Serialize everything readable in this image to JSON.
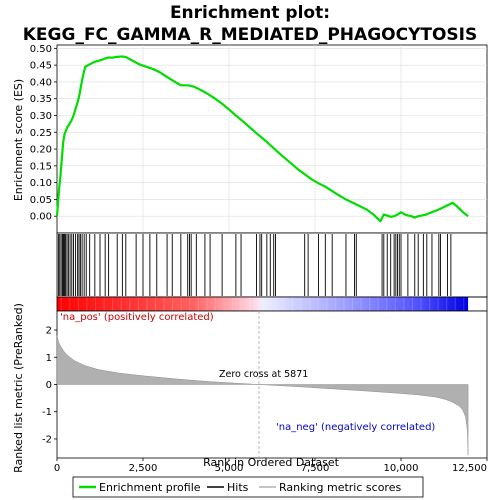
{
  "chart_data": {
    "type": "line",
    "title_line1": "Enrichment plot:",
    "title_line2": "KEGG_FC_GAMMA_R_MEDIATED_PHAGOCYTOSIS",
    "colors": {
      "enrichment_line": "#00dd00",
      "hits": "#000000",
      "metric_fill": "#b0b0b0",
      "heat_red": "#ff0000",
      "heat_blue": "#0000ff",
      "zero_line": "#aaaaaa"
    },
    "top_panel": {
      "ylabel": "Enrichment score (ES)",
      "ylim": [
        -0.05,
        0.51
      ],
      "yticks": [
        0.0,
        0.05,
        0.1,
        0.15,
        0.2,
        0.25,
        0.3,
        0.35,
        0.4,
        0.45,
        0.5
      ],
      "ytick_labels": [
        "0.00",
        "0.05",
        "0.10",
        "0.15",
        "0.20",
        "0.25",
        "0.30",
        "0.35",
        "0.40",
        "0.45",
        "0.50"
      ],
      "grid": true,
      "series": [
        {
          "name": "Enrichment profile",
          "x": [
            0,
            30,
            60,
            100,
            140,
            180,
            220,
            260,
            300,
            360,
            420,
            480,
            540,
            600,
            650,
            700,
            760,
            820,
            900,
            1000,
            1100,
            1200,
            1300,
            1400,
            1500,
            1600,
            1700,
            1800,
            1900,
            2000,
            2200,
            2400,
            2600,
            2800,
            3000,
            3200,
            3400,
            3600,
            3800,
            3900,
            4000,
            4200,
            4400,
            4600,
            4800,
            5000,
            5200,
            5400,
            5600,
            5800,
            6000,
            6200,
            6400,
            6600,
            6800,
            7000,
            7200,
            7400,
            7600,
            7800,
            8000,
            8200,
            8400,
            8600,
            8800,
            9000,
            9200,
            9400,
            9450,
            9500,
            9600,
            9700,
            9800,
            9900,
            10000,
            10100,
            10200,
            10300,
            10400,
            10500,
            10600,
            10700,
            10800,
            10900,
            11000,
            11100,
            11200,
            11300,
            11400,
            11500,
            11600,
            11700,
            11800,
            11900,
            11950
          ],
          "y": [
            0.0,
            0.04,
            0.08,
            0.12,
            0.17,
            0.22,
            0.245,
            0.255,
            0.265,
            0.275,
            0.285,
            0.3,
            0.32,
            0.34,
            0.36,
            0.39,
            0.42,
            0.445,
            0.45,
            0.455,
            0.46,
            0.463,
            0.466,
            0.47,
            0.473,
            0.472,
            0.474,
            0.475,
            0.476,
            0.474,
            0.463,
            0.452,
            0.445,
            0.438,
            0.428,
            0.415,
            0.402,
            0.39,
            0.39,
            0.388,
            0.385,
            0.375,
            0.363,
            0.35,
            0.335,
            0.318,
            0.3,
            0.283,
            0.265,
            0.247,
            0.23,
            0.212,
            0.193,
            0.175,
            0.158,
            0.14,
            0.125,
            0.11,
            0.098,
            0.088,
            0.075,
            0.062,
            0.05,
            0.04,
            0.03,
            0.02,
            0.005,
            -0.015,
            -0.005,
            0.005,
            0.002,
            -0.002,
            0.0,
            0.005,
            0.012,
            0.006,
            0.002,
            0.0,
            -0.004,
            0.0,
            0.002,
            0.004,
            0.008,
            0.012,
            0.016,
            0.02,
            0.025,
            0.03,
            0.035,
            0.04,
            0.032,
            0.022,
            0.012,
            0.004,
            0.0
          ]
        }
      ]
    },
    "hits": [
      40,
      80,
      120,
      160,
      190,
      220,
      250,
      290,
      330,
      380,
      430,
      480,
      540,
      600,
      640,
      680,
      730,
      790,
      850,
      950,
      1100,
      1250,
      1400,
      1500,
      1750,
      1900,
      2000,
      2300,
      2500,
      2700,
      2900,
      3200,
      3350,
      3600,
      3800,
      3850,
      3900,
      4050,
      4300,
      4450,
      4800,
      5200,
      5350,
      5800,
      5900,
      5950,
      6100,
      6200,
      6300,
      6350,
      7200,
      7300,
      7600,
      7800,
      8000,
      8400,
      8650,
      8700,
      9450,
      9500,
      9600,
      9700,
      9800,
      9850,
      9900,
      9950,
      10000,
      10200,
      10400,
      10500,
      10650,
      10750,
      10900,
      11100,
      11150,
      11350,
      11450
    ],
    "heatmap": {
      "n_genes": 11950,
      "zero_cross": 5871
    },
    "bottom_panel": {
      "ylabel": "Ranked list metric (PreRanked)",
      "xlabel": "Rank in Ordered Dataset",
      "ylim": [
        -2.7,
        2.7
      ],
      "yticks": [
        -2,
        -1,
        0,
        1,
        2
      ],
      "xticks": [
        0,
        2500,
        5000,
        7500,
        10000,
        12500
      ],
      "xtick_labels": [
        "0",
        "2,500",
        "5,000",
        "7,500",
        "10,000",
        "12,500"
      ],
      "xlim": [
        0,
        12500
      ],
      "metric_curve": {
        "x": [
          0,
          50,
          100,
          200,
          300,
          500,
          800,
          1200,
          1800,
          2500,
          3500,
          4500,
          5871,
          7000,
          8000,
          9000,
          10000,
          10500,
          11000,
          11300,
          11500,
          11700,
          11800,
          11880,
          11930,
          11950
        ],
        "y": [
          1.8,
          1.55,
          1.42,
          1.22,
          1.08,
          0.88,
          0.7,
          0.55,
          0.42,
          0.32,
          0.2,
          0.1,
          0.0,
          -0.08,
          -0.16,
          -0.24,
          -0.33,
          -0.38,
          -0.46,
          -0.55,
          -0.65,
          -0.8,
          -0.95,
          -1.2,
          -1.7,
          -2.6
        ]
      },
      "ann_pos": "'na_pos' (positively correlated)",
      "ann_neg": "'na_neg' (negatively correlated)",
      "ann_zero": "Zero cross at 5871"
    },
    "legend": {
      "items": [
        {
          "label": "Enrichment profile",
          "kind": "line",
          "color": "#00dd00"
        },
        {
          "label": "Hits",
          "kind": "line",
          "color": "#000000"
        },
        {
          "label": "Ranking metric scores",
          "kind": "line",
          "color": "#b0b0b0"
        }
      ]
    }
  }
}
